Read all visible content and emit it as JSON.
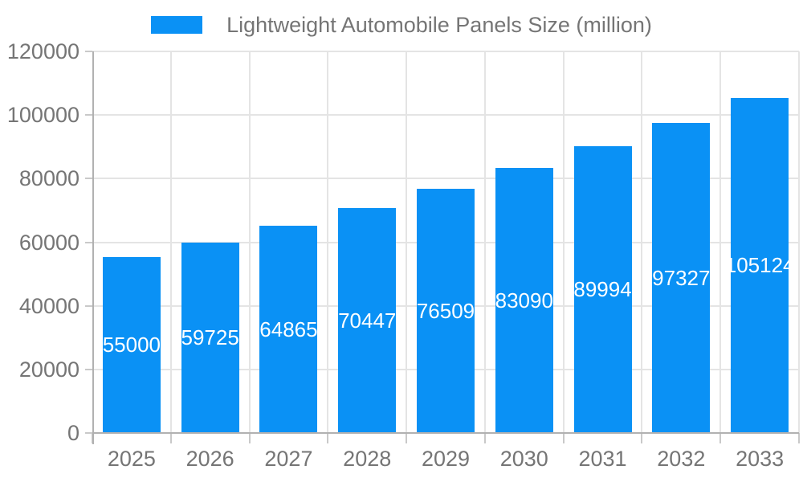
{
  "chart_data": {
    "type": "bar",
    "title": "",
    "legend": {
      "label": "Lightweight Automobile Panels Size (million)",
      "position": "top"
    },
    "categories": [
      "2025",
      "2026",
      "2027",
      "2028",
      "2029",
      "2030",
      "2031",
      "2032",
      "2033"
    ],
    "series": [
      {
        "name": "Lightweight Automobile Panels Size (million)",
        "values": [
          55000,
          59725,
          64865,
          70447,
          76509,
          83090,
          89994,
          97327,
          105124
        ]
      }
    ],
    "bar_value_labels": [
      "55000",
      "59725",
      "64865",
      "70447",
      "76509",
      "83090",
      "89994",
      "97327",
      "105124"
    ],
    "xlabel": "",
    "ylabel": "",
    "ylim": [
      0,
      120000
    ],
    "yticks": [
      0,
      20000,
      40000,
      60000,
      80000,
      100000,
      120000
    ],
    "ytick_labels": [
      "0",
      "20000",
      "40000",
      "60000",
      "80000",
      "100000",
      "120000"
    ],
    "grid": true,
    "value_label_position": "inside-middle",
    "colors": {
      "bar": "#0A91F5",
      "axis": "#b1b1b1",
      "grid": "#e4e4e4",
      "tick": "#c9c9c9",
      "text": "#757575",
      "bar_label": "#ffffff",
      "background": "#ffffff"
    }
  }
}
